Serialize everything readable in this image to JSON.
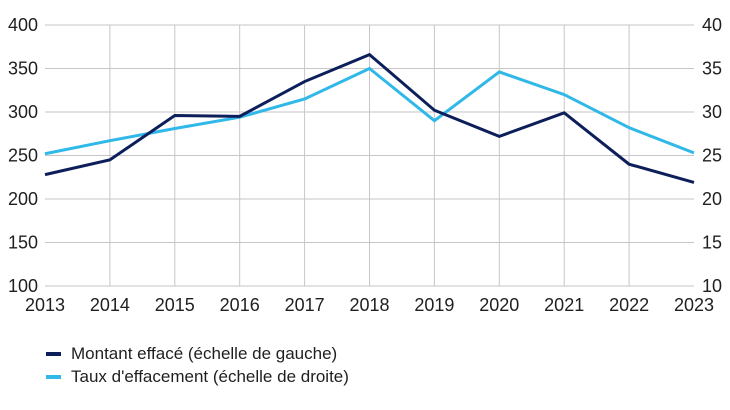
{
  "chart_data": {
    "type": "line",
    "title": "",
    "x": [
      "2013",
      "2014",
      "2015",
      "2016",
      "2017",
      "2018",
      "2019",
      "2020",
      "2021",
      "2022",
      "2023"
    ],
    "series": [
      {
        "name": "Montant effacé (échelle de gauche)",
        "axis": "left",
        "color": "#0d1f5b",
        "values": [
          228,
          245,
          296,
          295,
          335,
          366,
          302,
          272,
          299,
          240,
          219
        ]
      },
      {
        "name": "Taux d'effacement (échelle de droite)",
        "axis": "right",
        "color": "#30b8e8",
        "values": [
          25.2,
          26.7,
          28.1,
          29.4,
          31.5,
          35.0,
          29.0,
          34.6,
          32.0,
          28.2,
          25.3
        ]
      }
    ],
    "axes": {
      "left": {
        "min": 100,
        "max": 400,
        "ticks": [
          400,
          350,
          300,
          250,
          200,
          150,
          100
        ]
      },
      "right": {
        "min": 10,
        "max": 40,
        "ticks": [
          40,
          35,
          30,
          25,
          20,
          15,
          10
        ]
      }
    },
    "grid": true,
    "legend_position": "bottom-left",
    "colors": {
      "gridline": "#c6c6c6",
      "text": "#1f1f1f"
    }
  }
}
